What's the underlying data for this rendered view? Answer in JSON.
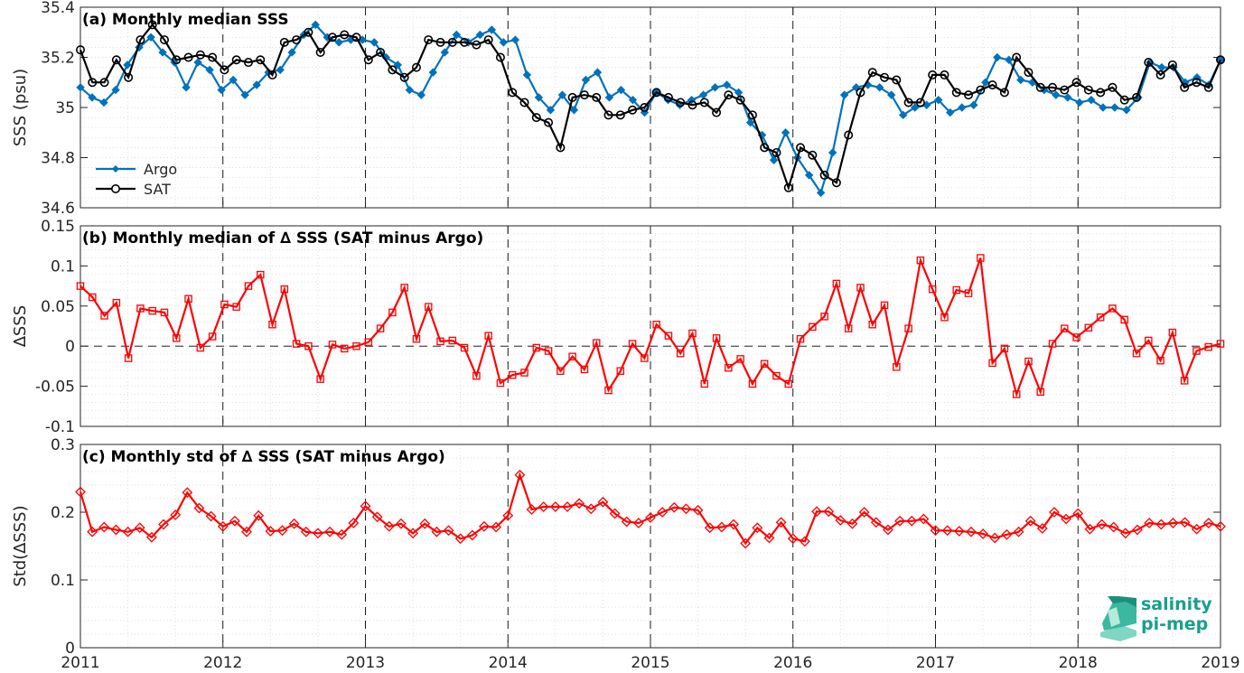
{
  "chart_data": [
    {
      "type": "line",
      "title": "(a) Monthly median SSS",
      "ylabel": "SSS (psu)",
      "xlabel": "",
      "ylim": [
        34.6,
        35.4
      ],
      "xlim": [
        2011,
        2019
      ],
      "yticks": [
        "34.6",
        "34.8",
        "35",
        "35.2",
        "35.4"
      ],
      "grid": "minor dotted",
      "legend_position": "bottom-left",
      "series": [
        {
          "name": "Argo",
          "color": "#0072bd",
          "marker": "diamond",
          "values": [
            35.08,
            35.04,
            35.02,
            35.07,
            35.17,
            35.24,
            35.28,
            35.22,
            35.18,
            35.08,
            35.18,
            35.15,
            35.07,
            35.11,
            35.05,
            35.09,
            35.14,
            35.15,
            35.22,
            35.29,
            35.33,
            35.28,
            35.26,
            35.27,
            35.27,
            35.26,
            35.2,
            35.17,
            35.07,
            35.05,
            35.14,
            35.22,
            35.29,
            35.26,
            35.29,
            35.31,
            35.26,
            35.27,
            35.13,
            35.04,
            34.99,
            35.05,
            34.99,
            35.11,
            35.14,
            35.04,
            35.07,
            35.03,
            34.98,
            35.06,
            35.03,
            35.01,
            35.03,
            35.05,
            35.08,
            35.09,
            35.06,
            34.94,
            34.89,
            34.79,
            34.9,
            34.8,
            34.73,
            34.66,
            34.82,
            35.05,
            35.08,
            35.09,
            35.08,
            35.05,
            34.97,
            35.0,
            35.01,
            35.03,
            34.98,
            35.0,
            35.01,
            35.1,
            35.2,
            35.19,
            35.11,
            35.1,
            35.07,
            35.05,
            35.04,
            35.02,
            35.03,
            35.0,
            35.0,
            34.99,
            35.04,
            35.18,
            35.16,
            35.16,
            35.1,
            35.12,
            35.09,
            35.19
          ]
        },
        {
          "name": "SAT",
          "color": "#000000",
          "marker": "circle",
          "values": [
            35.23,
            35.1,
            35.1,
            35.19,
            35.12,
            35.27,
            35.33,
            35.27,
            35.19,
            35.2,
            35.21,
            35.2,
            35.15,
            35.19,
            35.18,
            35.19,
            35.13,
            35.26,
            35.27,
            35.3,
            35.22,
            35.28,
            35.29,
            35.28,
            35.19,
            35.22,
            35.15,
            35.12,
            35.16,
            35.27,
            35.26,
            35.26,
            35.26,
            35.25,
            35.27,
            35.2,
            35.06,
            35.02,
            34.96,
            34.94,
            34.84,
            35.04,
            35.05,
            35.04,
            34.97,
            34.97,
            34.99,
            35.0,
            35.06,
            35.04,
            35.02,
            35.01,
            35.02,
            34.98,
            35.05,
            35.03,
            34.97,
            34.84,
            34.82,
            34.68,
            34.84,
            34.81,
            34.73,
            34.7,
            34.89,
            35.06,
            35.14,
            35.12,
            35.11,
            35.02,
            35.02,
            35.13,
            35.13,
            35.06,
            35.05,
            35.07,
            35.09,
            35.06,
            35.2,
            35.14,
            35.08,
            35.08,
            35.07,
            35.1,
            35.07,
            35.06,
            35.08,
            35.03,
            35.04,
            35.18,
            35.13,
            35.17,
            35.08,
            35.1,
            35.08,
            35.19
          ]
        }
      ]
    },
    {
      "type": "line",
      "title": "(b) Monthly median of ∆ SSS (SAT minus Argo)",
      "ylabel": "∆SSS",
      "xlabel": "",
      "ylim": [
        -0.1,
        0.15
      ],
      "xlim": [
        2011,
        2019
      ],
      "yticks": [
        "-0.1",
        "-0.05",
        "0",
        "0.05",
        "0.1",
        "0.15"
      ],
      "zero_line": true,
      "grid": "minor dotted",
      "series": [
        {
          "name": "",
          "color": "#ff0000",
          "marker": "square",
          "values": [
            0.075,
            0.061,
            0.038,
            0.054,
            -0.015,
            0.047,
            0.044,
            0.042,
            0.01,
            0.059,
            -0.002,
            0.012,
            0.052,
            0.049,
            0.075,
            0.089,
            0.027,
            0.071,
            0.003,
            0.0,
            -0.041,
            0.002,
            -0.003,
            0.0,
            0.005,
            0.022,
            0.042,
            0.073,
            0.009,
            0.049,
            0.006,
            0.007,
            -0.002,
            -0.037,
            0.013,
            -0.046,
            -0.036,
            -0.033,
            -0.002,
            -0.006,
            -0.031,
            -0.013,
            -0.029,
            0.004,
            -0.055,
            -0.031,
            0.003,
            -0.015,
            0.027,
            0.013,
            -0.009,
            0.016,
            -0.047,
            0.01,
            -0.027,
            -0.016,
            -0.047,
            -0.022,
            -0.037,
            -0.047,
            0.009,
            0.024,
            0.037,
            0.078,
            0.022,
            0.073,
            0.027,
            0.051,
            -0.026,
            0.022,
            0.107,
            0.071,
            0.036,
            0.07,
            0.066,
            0.11,
            -0.021,
            -0.003,
            -0.06,
            -0.019,
            -0.057,
            0.003,
            0.022,
            0.011,
            0.023,
            0.036,
            0.047,
            0.033,
            -0.009,
            0.007,
            -0.018,
            0.017,
            -0.043,
            -0.006,
            -0.001,
            0.003
          ]
        }
      ]
    },
    {
      "type": "line",
      "title": "(c) Monthly std of ∆ SSS (SAT minus Argo)",
      "ylabel": "Std(∆SSS)",
      "xlabel": "",
      "ylim": [
        0,
        0.3
      ],
      "xlim": [
        2011,
        2019
      ],
      "yticks": [
        "0",
        "0.1",
        "0.2",
        "0.3"
      ],
      "xticks": [
        "2011",
        "2012",
        "2013",
        "2014",
        "2015",
        "2016",
        "2017",
        "2018",
        "2019"
      ],
      "grid": "minor dotted",
      "series": [
        {
          "name": "",
          "color": "#ff0000",
          "marker": "diamond",
          "values": [
            0.23,
            0.171,
            0.178,
            0.174,
            0.171,
            0.177,
            0.163,
            0.182,
            0.196,
            0.229,
            0.206,
            0.194,
            0.179,
            0.187,
            0.171,
            0.195,
            0.172,
            0.173,
            0.183,
            0.171,
            0.169,
            0.171,
            0.167,
            0.184,
            0.209,
            0.193,
            0.179,
            0.183,
            0.169,
            0.183,
            0.171,
            0.173,
            0.161,
            0.166,
            0.179,
            0.178,
            0.195,
            0.255,
            0.204,
            0.208,
            0.208,
            0.208,
            0.213,
            0.205,
            0.215,
            0.198,
            0.186,
            0.184,
            0.192,
            0.2,
            0.207,
            0.205,
            0.203,
            0.177,
            0.178,
            0.182,
            0.154,
            0.177,
            0.162,
            0.185,
            0.161,
            0.157,
            0.201,
            0.201,
            0.188,
            0.183,
            0.2,
            0.185,
            0.174,
            0.187,
            0.187,
            0.19,
            0.173,
            0.173,
            0.172,
            0.171,
            0.168,
            0.162,
            0.167,
            0.171,
            0.187,
            0.176,
            0.2,
            0.19,
            0.198,
            0.175,
            0.182,
            0.178,
            0.169,
            0.174,
            0.184,
            0.182,
            0.184,
            0.185,
            0.175,
            0.184,
            0.179
          ]
        }
      ]
    }
  ],
  "logo": {
    "line1": "salinity",
    "line2": "pi-mep"
  }
}
